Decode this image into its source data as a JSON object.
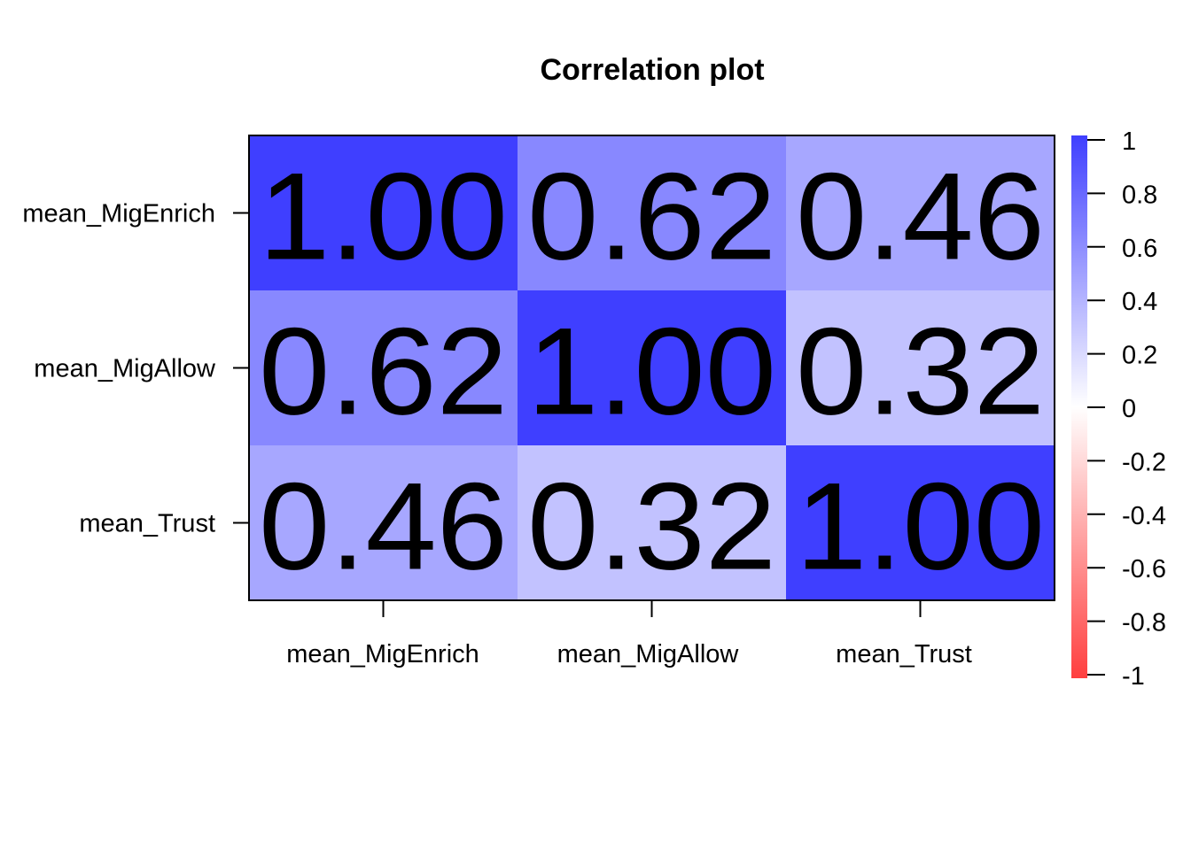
{
  "chart_data": {
    "type": "heatmap",
    "title": "Correlation plot",
    "row_labels": [
      "mean_MigEnrich",
      "mean_MigAllow",
      "mean_Trust"
    ],
    "col_labels": [
      "mean_MigEnrich",
      "mean_MigAllow",
      "mean_Trust"
    ],
    "values": [
      [
        1.0,
        0.62,
        0.46
      ],
      [
        0.62,
        1.0,
        0.32
      ],
      [
        0.46,
        0.32,
        1.0
      ]
    ],
    "cell_text": [
      [
        "1.00",
        "0.62",
        "0.46"
      ],
      [
        "0.62",
        "1.00",
        "0.32"
      ],
      [
        "0.46",
        "0.32",
        "1.00"
      ]
    ],
    "color_scale": {
      "low": "#ff3f3f",
      "mid": "#ffffff",
      "high": "#3f3fff",
      "range": [
        -1,
        1
      ]
    },
    "legend_ticks": [
      "1",
      "0.8",
      "0.6",
      "0.4",
      "0.2",
      "0",
      "-0.2",
      "-0.4",
      "-0.6",
      "-0.8",
      "-1"
    ],
    "legend_tick_values": [
      1,
      0.8,
      0.6,
      0.4,
      0.2,
      0,
      -0.2,
      -0.4,
      -0.6,
      -0.8,
      -1
    ],
    "legend_placement": "right",
    "grid": false
  }
}
